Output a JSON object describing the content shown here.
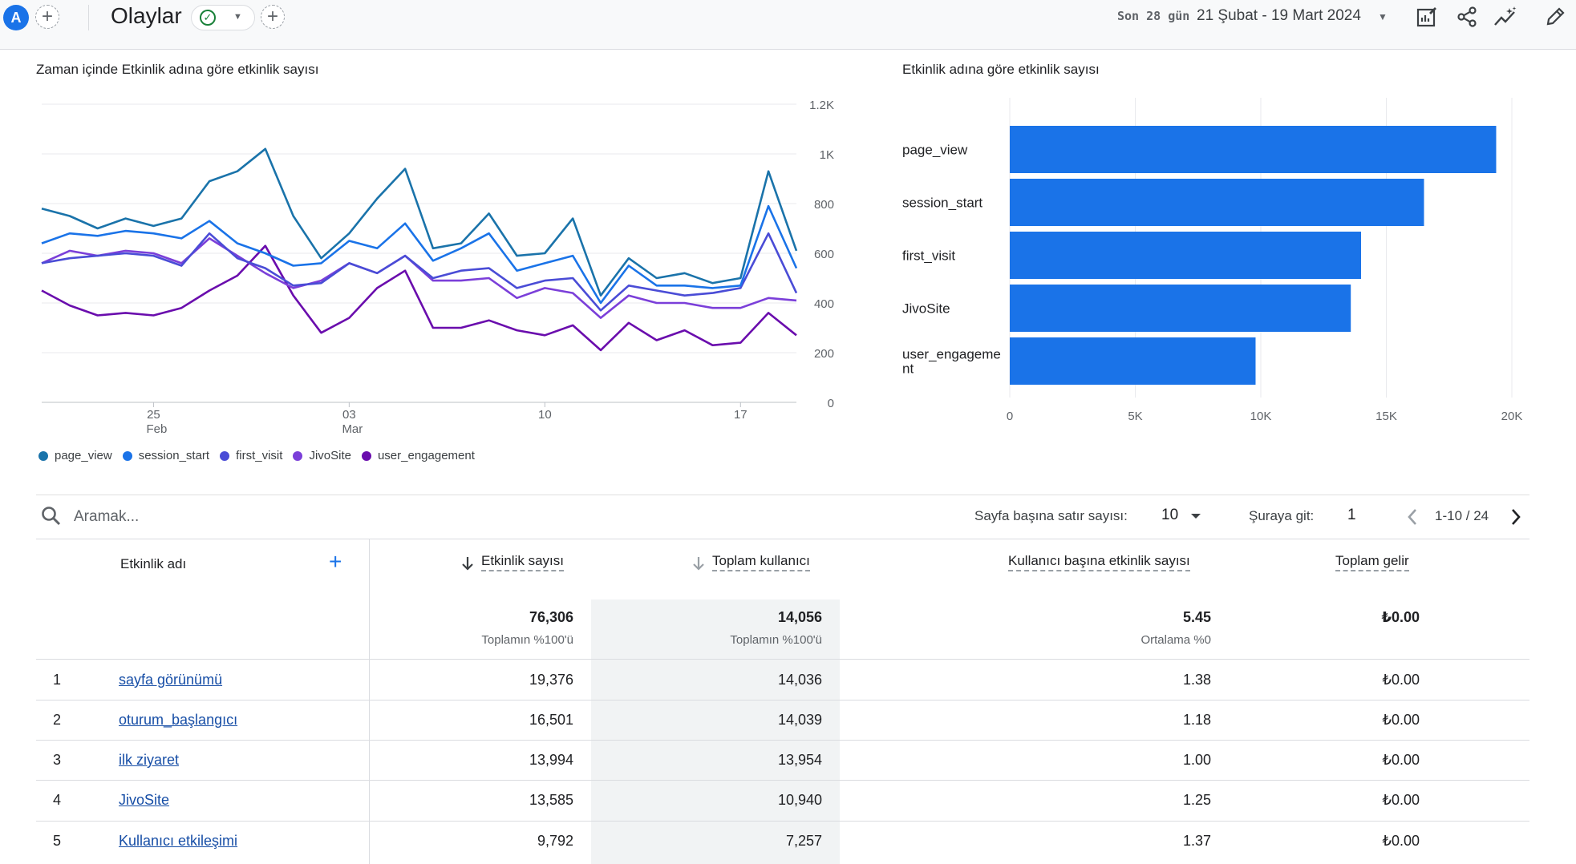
{
  "header": {
    "avatar_letter": "A",
    "title": "Olaylar",
    "date_prefix": "Son 28 gün",
    "date_range": "21 Şubat - 19 Mart 2024"
  },
  "line_chart": {
    "title": "Zaman içinde Etkinlik adına göre etkinlik sayısı",
    "y_ticks": [
      "0",
      "200",
      "400",
      "600",
      "800",
      "1K",
      "1.2K"
    ],
    "x_ticks": [
      {
        "day": "25",
        "month": "Feb"
      },
      {
        "day": "03",
        "month": "Mar"
      },
      {
        "day": "10",
        "month": ""
      },
      {
        "day": "17",
        "month": ""
      }
    ],
    "legend": [
      {
        "name": "page_view",
        "color": "#1a73aa"
      },
      {
        "name": "session_start",
        "color": "#1a73e8"
      },
      {
        "name": "first_visit",
        "color": "#4a4cd6"
      },
      {
        "name": "JivoSite",
        "color": "#7b3fd9"
      },
      {
        "name": "user_engagement",
        "color": "#6a0dad"
      }
    ]
  },
  "bar_chart": {
    "title": "Etkinlik adına göre etkinlik sayısı",
    "bar_color": "#1a73e8"
  },
  "chart_data": [
    {
      "type": "line",
      "title": "Zaman içinde Etkinlik adına göre etkinlik sayısı",
      "x": [
        "2024-02-21",
        "2024-02-22",
        "2024-02-23",
        "2024-02-24",
        "2024-02-25",
        "2024-02-26",
        "2024-02-27",
        "2024-02-28",
        "2024-02-29",
        "2024-03-01",
        "2024-03-02",
        "2024-03-03",
        "2024-03-04",
        "2024-03-05",
        "2024-03-06",
        "2024-03-07",
        "2024-03-08",
        "2024-03-09",
        "2024-03-10",
        "2024-03-11",
        "2024-03-12",
        "2024-03-13",
        "2024-03-14",
        "2024-03-15",
        "2024-03-16",
        "2024-03-17",
        "2024-03-18",
        "2024-03-19"
      ],
      "ylim": [
        0,
        1200
      ],
      "series": [
        {
          "name": "page_view",
          "color": "#1a73aa",
          "values": [
            780,
            750,
            700,
            740,
            710,
            740,
            890,
            930,
            1020,
            750,
            580,
            680,
            820,
            940,
            620,
            640,
            760,
            590,
            600,
            740,
            430,
            580,
            500,
            520,
            480,
            500,
            930,
            610
          ]
        },
        {
          "name": "session_start",
          "color": "#1a73e8",
          "values": [
            640,
            680,
            670,
            690,
            680,
            660,
            730,
            640,
            600,
            550,
            560,
            650,
            620,
            720,
            570,
            620,
            680,
            530,
            560,
            590,
            400,
            550,
            470,
            470,
            460,
            470,
            790,
            540
          ]
        },
        {
          "name": "first_visit",
          "color": "#4a4cd6",
          "values": [
            560,
            580,
            590,
            600,
            590,
            550,
            680,
            580,
            540,
            470,
            480,
            560,
            520,
            590,
            500,
            530,
            540,
            460,
            490,
            500,
            370,
            470,
            450,
            430,
            440,
            460,
            680,
            440
          ]
        },
        {
          "name": "JivoSite",
          "color": "#7b3fd9",
          "values": [
            560,
            610,
            590,
            610,
            600,
            560,
            660,
            590,
            520,
            460,
            490,
            560,
            520,
            590,
            490,
            490,
            500,
            420,
            460,
            440,
            340,
            430,
            400,
            400,
            380,
            380,
            420,
            410
          ]
        },
        {
          "name": "user_engagement",
          "color": "#6a0dad",
          "values": [
            450,
            390,
            350,
            360,
            350,
            380,
            450,
            510,
            630,
            430,
            280,
            340,
            460,
            530,
            300,
            300,
            330,
            290,
            270,
            310,
            210,
            320,
            250,
            290,
            230,
            240,
            360,
            270
          ]
        }
      ]
    },
    {
      "type": "bar",
      "orientation": "horizontal",
      "title": "Etkinlik adına göre etkinlik sayısı",
      "categories": [
        "page_view",
        "session_start",
        "first_visit",
        "JivoSite",
        "user_engagement"
      ],
      "category_labels": [
        [
          "page_view"
        ],
        [
          "session_start"
        ],
        [
          "first_visit"
        ],
        [
          "JivoSite"
        ],
        [
          "user_engageme",
          "nt"
        ]
      ],
      "values": [
        19376,
        16501,
        13994,
        13585,
        9792
      ],
      "xlim": [
        0,
        20000
      ],
      "x_ticks": [
        "0",
        "5K",
        "10K",
        "15K",
        "20K"
      ]
    }
  ],
  "toolbar": {
    "search_placeholder": "Aramak...",
    "rows_per_page_label": "Sayfa başına satır sayısı:",
    "rows_per_page_value": "10",
    "goto_label": "Şuraya git:",
    "goto_value": "1",
    "page_range": "1-10 / 24"
  },
  "table": {
    "columns": {
      "event_name": "Etkinlik adı",
      "event_count": "Etkinlik sayısı",
      "total_users": "Toplam kullanıcı",
      "events_per_user": "Kullanıcı başına etkinlik sayısı",
      "total_revenue": "Toplam gelir"
    },
    "totals": {
      "event_count": "76,306",
      "event_count_sub": "Toplamın %100'ü",
      "total_users": "14,056",
      "total_users_sub": "Toplamın %100'ü",
      "events_per_user": "5.45",
      "events_per_user_sub": "Ortalama %0",
      "total_revenue": "₺0.00"
    },
    "rows": [
      {
        "index": "1",
        "name": "sayfa görünümü",
        "event_count": "19,376",
        "total_users": "14,036",
        "events_per_user": "1.38",
        "total_revenue": "₺0.00"
      },
      {
        "index": "2",
        "name": "oturum_başlangıcı",
        "event_count": "16,501",
        "total_users": "14,039",
        "events_per_user": "1.18",
        "total_revenue": "₺0.00"
      },
      {
        "index": "3",
        "name": "ilk ziyaret",
        "event_count": "13,994",
        "total_users": "13,954",
        "events_per_user": "1.00",
        "total_revenue": "₺0.00"
      },
      {
        "index": "4",
        "name": "JivoSite",
        "event_count": "13,585",
        "total_users": "10,940",
        "events_per_user": "1.25",
        "total_revenue": "₺0.00"
      },
      {
        "index": "5",
        "name": "Kullanıcı etkileşimi",
        "event_count": "9,792",
        "total_users": "7,257",
        "events_per_user": "1.37",
        "total_revenue": "₺0.00"
      }
    ]
  },
  "icons": {
    "add": "plus-icon",
    "status": "check-circle-icon",
    "dropdown": "chevron-down-icon",
    "customize": "customize-report-icon",
    "share": "share-icon",
    "insights": "insights-icon",
    "edit": "pencil-icon",
    "search": "search-icon",
    "prev": "chevron-left-icon",
    "next": "chevron-right-icon",
    "sort": "arrow-down-icon"
  }
}
